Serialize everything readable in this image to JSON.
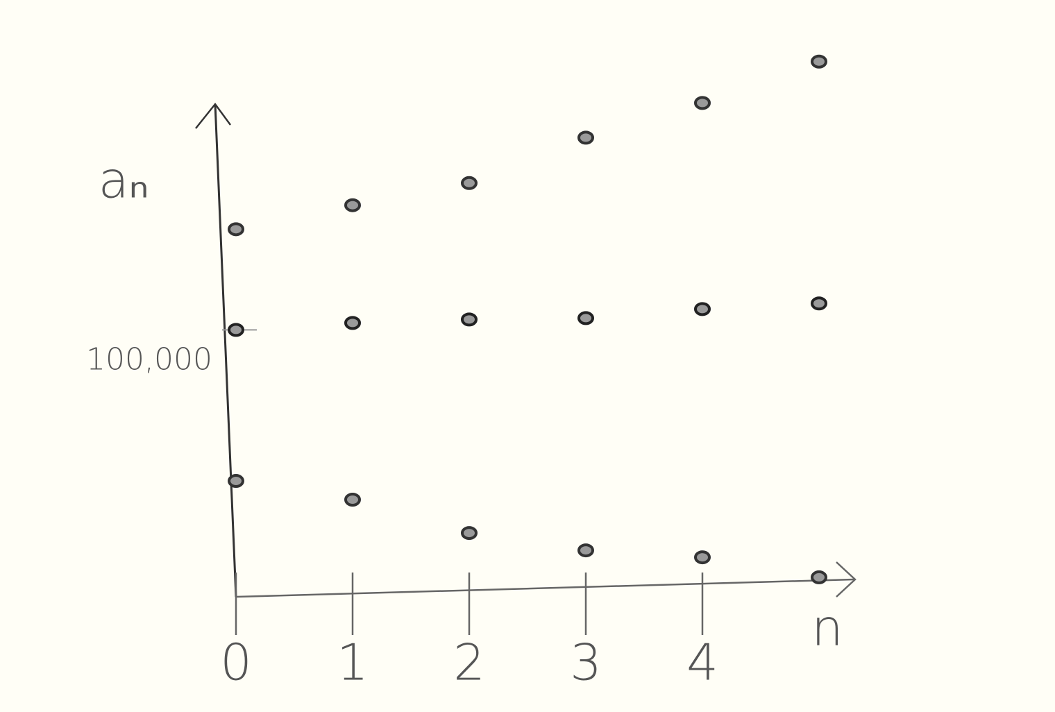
{
  "chart_data": {
    "type": "scatter",
    "x_label": "n",
    "y_label": "aₙ",
    "x": [
      0,
      1,
      2,
      3,
      4,
      5
    ],
    "series": [
      {
        "color": "#333333",
        "values": [
          137700,
          146700,
          155000,
          172000,
          185000,
          200500
        ]
      },
      {
        "color": "#222222",
        "values": [
          100000,
          102600,
          103900,
          104400,
          107800,
          109900
        ]
      },
      {
        "color": "#333333",
        "values": [
          43400,
          36400,
          23900,
          17400,
          14800,
          7300
        ]
      }
    ],
    "xlim": [
      0,
      5.5
    ],
    "ylim": [
      0,
      215000
    ],
    "xticks": [
      0,
      1,
      2,
      3,
      4
    ],
    "yticks": [
      {
        "value": 100000,
        "label": "100,000"
      }
    ],
    "grid": false
  }
}
